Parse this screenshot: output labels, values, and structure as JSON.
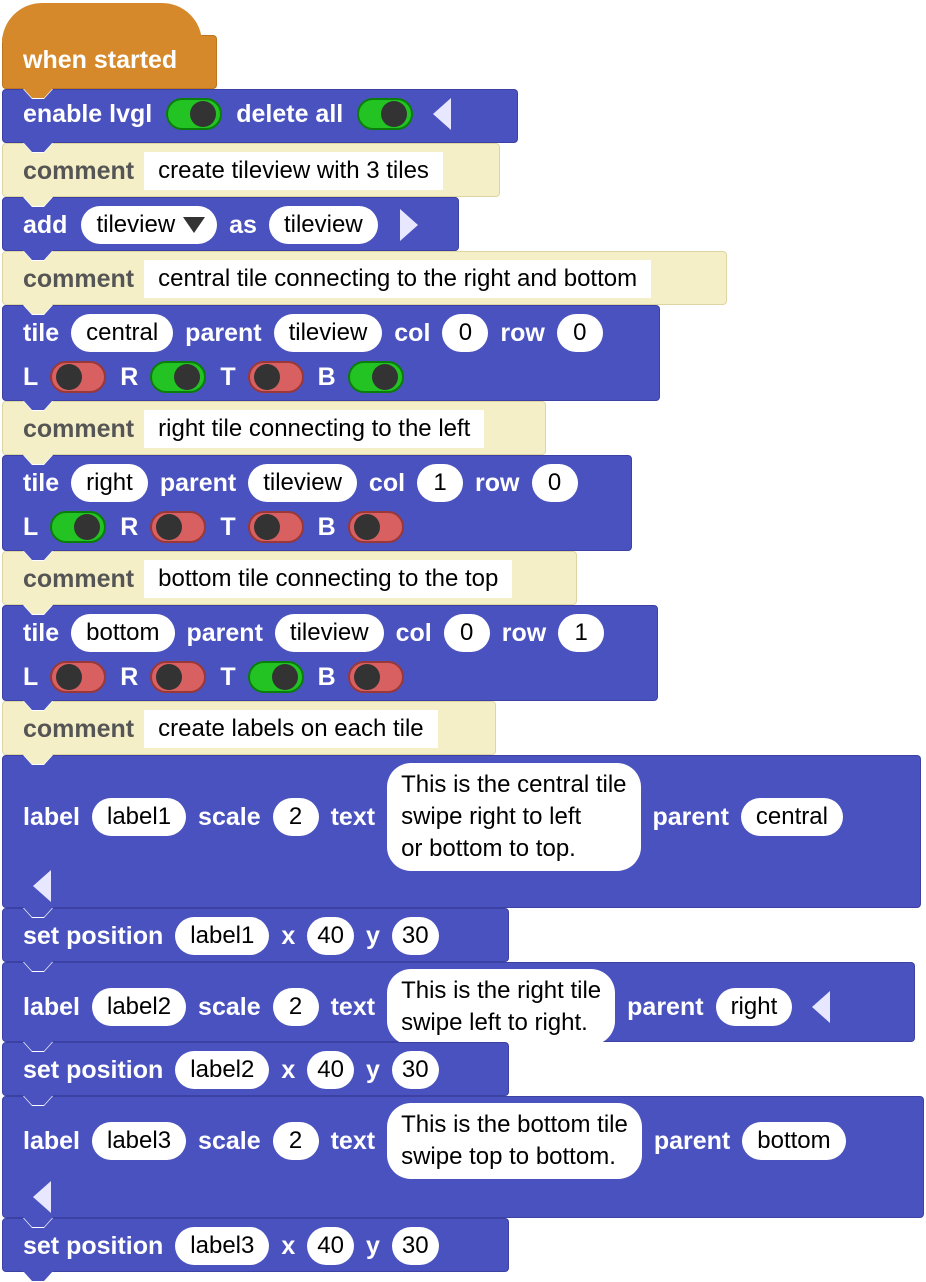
{
  "hat": {
    "label": "when started"
  },
  "enable": {
    "kw_enable": "enable lvgl",
    "kw_delete": "delete all",
    "enable_on": true,
    "delete_on": true
  },
  "c1": {
    "kw": "comment",
    "text": "create tileview with 3 tiles"
  },
  "add": {
    "kw_add": "add",
    "type": "tileview",
    "kw_as": "as",
    "name": "tileview"
  },
  "c2": {
    "kw": "comment",
    "text": "central tile connecting to the right and bottom"
  },
  "t1": {
    "kw_tile": "tile",
    "name": "central",
    "kw_parent": "parent",
    "parent": "tileview",
    "kw_col": "col",
    "col": "0",
    "kw_row": "row",
    "row": "0",
    "L": "L",
    "R": "R",
    "T": "T",
    "B": "B",
    "L_on": false,
    "R_on": true,
    "T_on": false,
    "B_on": true
  },
  "c3": {
    "kw": "comment",
    "text": "right tile connecting to the left"
  },
  "t2": {
    "kw_tile": "tile",
    "name": "right",
    "kw_parent": "parent",
    "parent": "tileview",
    "kw_col": "col",
    "col": "1",
    "kw_row": "row",
    "row": "0",
    "L": "L",
    "R": "R",
    "T": "T",
    "B": "B",
    "L_on": true,
    "R_on": false,
    "T_on": false,
    "B_on": false
  },
  "c4": {
    "kw": "comment",
    "text": "bottom tile connecting to the top"
  },
  "t3": {
    "kw_tile": "tile",
    "name": "bottom",
    "kw_parent": "parent",
    "parent": "tileview",
    "kw_col": "col",
    "col": "0",
    "kw_row": "row",
    "row": "1",
    "L": "L",
    "R": "R",
    "T": "T",
    "B": "B",
    "L_on": false,
    "R_on": false,
    "T_on": true,
    "B_on": false
  },
  "c5": {
    "kw": "comment",
    "text": "create labels on each tile"
  },
  "l1": {
    "kw_label": "label",
    "name": "label1",
    "kw_scale": "scale",
    "scale": "2",
    "kw_text": "text",
    "text": "This is the central tile\nswipe right to left\nor bottom to top.",
    "kw_parent": "parent",
    "parent": "central"
  },
  "p1": {
    "kw": "set position",
    "name": "label1",
    "kw_x": "x",
    "x": "40",
    "kw_y": "y",
    "y": "30"
  },
  "l2": {
    "kw_label": "label",
    "name": "label2",
    "kw_scale": "scale",
    "scale": "2",
    "kw_text": "text",
    "text": "This is the right tile\nswipe left to right.",
    "kw_parent": "parent",
    "parent": "right"
  },
  "p2": {
    "kw": "set position",
    "name": "label2",
    "kw_x": "x",
    "x": "40",
    "kw_y": "y",
    "y": "30"
  },
  "l3": {
    "kw_label": "label",
    "name": "label3",
    "kw_scale": "scale",
    "scale": "2",
    "kw_text": "text",
    "text": "This is the bottom tile\nswipe top to bottom.",
    "kw_parent": "parent",
    "parent": "bottom"
  },
  "p3": {
    "kw": "set position",
    "name": "label3",
    "kw_x": "x",
    "x": "40",
    "kw_y": "y",
    "y": "30"
  },
  "colors": {
    "lvgl_block": "#4a52c0",
    "comment_block": "#f4efc6",
    "event_block": "#d5892b",
    "toggle_on": "#22c322",
    "toggle_off": "#d96060"
  }
}
